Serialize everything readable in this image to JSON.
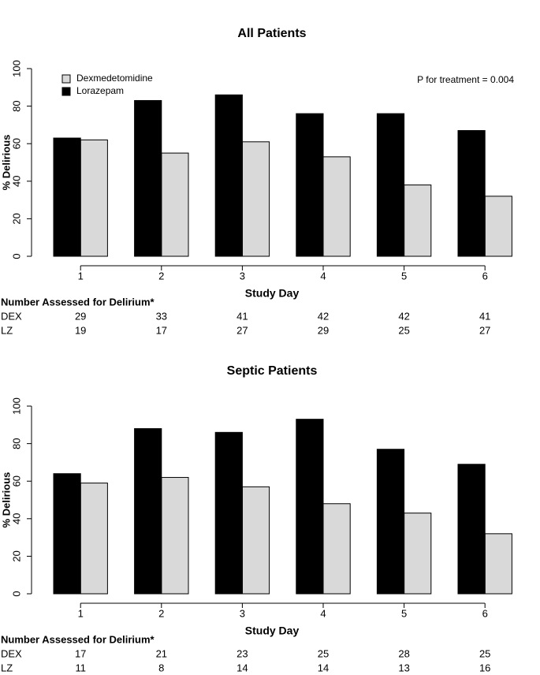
{
  "chart_data": [
    {
      "type": "bar",
      "title": "All Patients",
      "xlabel": "Study Day",
      "ylabel": "% Delirious",
      "categories": [
        "1",
        "2",
        "3",
        "4",
        "5",
        "6"
      ],
      "series": [
        {
          "name": "Dexmedetomidine",
          "color": "#d9d9d9",
          "values": [
            62,
            55,
            61,
            53,
            38,
            32
          ]
        },
        {
          "name": "Lorazepam",
          "color": "#000000",
          "values": [
            63,
            83,
            86,
            76,
            76,
            67
          ]
        }
      ],
      "ylim": [
        0,
        100
      ],
      "yticks": [
        0,
        20,
        40,
        60,
        80,
        100
      ],
      "legend": "top-left",
      "annotation": "P for treatment = 0.004",
      "table": {
        "title": "Number Assessed for Delirium*",
        "rows": [
          {
            "label": "DEX",
            "values": [
              29,
              33,
              41,
              42,
              42,
              41
            ]
          },
          {
            "label": "LZ",
            "values": [
              19,
              17,
              27,
              29,
              25,
              27
            ]
          }
        ]
      }
    },
    {
      "type": "bar",
      "title": "Septic Patients",
      "xlabel": "Study Day",
      "ylabel": "% Delirious",
      "categories": [
        "1",
        "2",
        "3",
        "4",
        "5",
        "6"
      ],
      "series": [
        {
          "color": "#d9d9d9",
          "values": [
            59,
            62,
            57,
            48,
            43,
            32
          ]
        },
        {
          "color": "#000000",
          "values": [
            64,
            88,
            86,
            93,
            77,
            69
          ]
        }
      ],
      "ylim": [
        0,
        100
      ],
      "yticks": [
        0,
        20,
        40,
        60,
        80,
        100
      ],
      "table": {
        "title": "Number Assessed for Delirium*",
        "rows": [
          {
            "label": "DEX",
            "values": [
              17,
              21,
              23,
              25,
              28,
              25
            ]
          },
          {
            "label": "LZ",
            "values": [
              11,
              8,
              14,
              14,
              13,
              16
            ]
          }
        ]
      }
    }
  ]
}
